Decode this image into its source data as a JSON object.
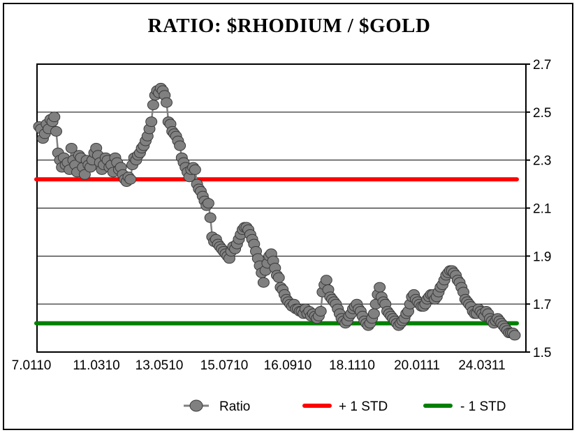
{
  "chart_data": {
    "type": "line",
    "title": "RATIO: $RHODIUM / $GOLD",
    "xlabel": "",
    "ylabel": "",
    "x_tick_labels": [
      "7.0110",
      "11.0310",
      "13.0510",
      "15.0710",
      "16.0910",
      "18.1110",
      "20.0111",
      "24.0311"
    ],
    "y_ticks": [
      1.5,
      1.7,
      1.9,
      2.1,
      2.3,
      2.5,
      2.7
    ],
    "y_tick_labels": [
      "1.5",
      "1.7",
      "1.9",
      "2.1",
      "2.3",
      "2.5",
      "2.7"
    ],
    "ylim": [
      1.5,
      2.7
    ],
    "y_axis_side": "right",
    "grid": "horizontal",
    "legend_position": "bottom",
    "series": [
      {
        "name": "Ratio",
        "color": "#808080",
        "marker": "circle",
        "values": [
          2.44,
          2.43,
          2.39,
          2.41,
          2.45,
          2.43,
          2.47,
          2.46,
          2.48,
          2.42,
          2.33,
          2.3,
          2.27,
          2.31,
          2.28,
          2.29,
          2.26,
          2.35,
          2.3,
          2.28,
          2.25,
          2.32,
          2.31,
          2.27,
          2.24,
          2.3,
          2.28,
          2.27,
          2.3,
          2.33,
          2.35,
          2.32,
          2.29,
          2.26,
          2.28,
          2.31,
          2.3,
          2.27,
          2.28,
          2.25,
          2.31,
          2.29,
          2.26,
          2.27,
          2.24,
          2.22,
          2.21,
          2.23,
          2.22,
          2.28,
          2.31,
          2.3,
          2.32,
          2.33,
          2.35,
          2.36,
          2.38,
          2.4,
          2.43,
          2.46,
          2.53,
          2.57,
          2.59,
          2.58,
          2.6,
          2.59,
          2.57,
          2.54,
          2.46,
          2.45,
          2.42,
          2.41,
          2.4,
          2.38,
          2.36,
          2.31,
          2.29,
          2.27,
          2.25,
          2.23,
          2.26,
          2.27,
          2.26,
          2.2,
          2.18,
          2.17,
          2.15,
          2.13,
          2.11,
          2.12,
          2.06,
          1.98,
          1.96,
          1.97,
          1.95,
          1.94,
          1.93,
          1.92,
          1.91,
          1.9,
          1.89,
          1.92,
          1.94,
          1.93,
          1.95,
          1.97,
          1.99,
          2.01,
          2.02,
          2.02,
          2.01,
          1.99,
          1.97,
          1.95,
          1.92,
          1.89,
          1.86,
          1.83,
          1.79,
          1.84,
          1.87,
          1.9,
          1.91,
          1.88,
          1.85,
          1.82,
          1.81,
          1.77,
          1.76,
          1.74,
          1.72,
          1.71,
          1.7,
          1.69,
          1.7,
          1.68,
          1.68,
          1.67,
          1.67,
          1.66,
          1.68,
          1.66,
          1.67,
          1.65,
          1.66,
          1.65,
          1.64,
          1.65,
          1.67,
          1.75,
          1.78,
          1.8,
          1.76,
          1.73,
          1.72,
          1.71,
          1.7,
          1.68,
          1.66,
          1.64,
          1.63,
          1.62,
          1.63,
          1.65,
          1.66,
          1.68,
          1.69,
          1.7,
          1.68,
          1.67,
          1.65,
          1.63,
          1.62,
          1.61,
          1.62,
          1.64,
          1.66,
          1.7,
          1.74,
          1.77,
          1.73,
          1.71,
          1.7,
          1.67,
          1.66,
          1.65,
          1.64,
          1.63,
          1.62,
          1.61,
          1.62,
          1.63,
          1.64,
          1.66,
          1.67,
          1.7,
          1.73,
          1.74,
          1.72,
          1.71,
          1.7,
          1.69,
          1.69,
          1.7,
          1.72,
          1.73,
          1.74,
          1.74,
          1.72,
          1.73,
          1.75,
          1.77,
          1.78,
          1.8,
          1.82,
          1.83,
          1.84,
          1.84,
          1.83,
          1.82,
          1.8,
          1.79,
          1.77,
          1.75,
          1.72,
          1.71,
          1.7,
          1.69,
          1.67,
          1.66,
          1.66,
          1.68,
          1.67,
          1.66,
          1.65,
          1.67,
          1.66,
          1.64,
          1.63,
          1.62,
          1.63,
          1.64,
          1.63,
          1.62,
          1.61,
          1.6,
          1.59,
          1.58,
          1.58,
          1.58,
          1.57
        ]
      },
      {
        "name": "+ 1 STD",
        "color": "#ff0000",
        "value": 2.22
      },
      {
        "name": "- 1 STD",
        "color": "#008000",
        "value": 1.62
      }
    ]
  }
}
